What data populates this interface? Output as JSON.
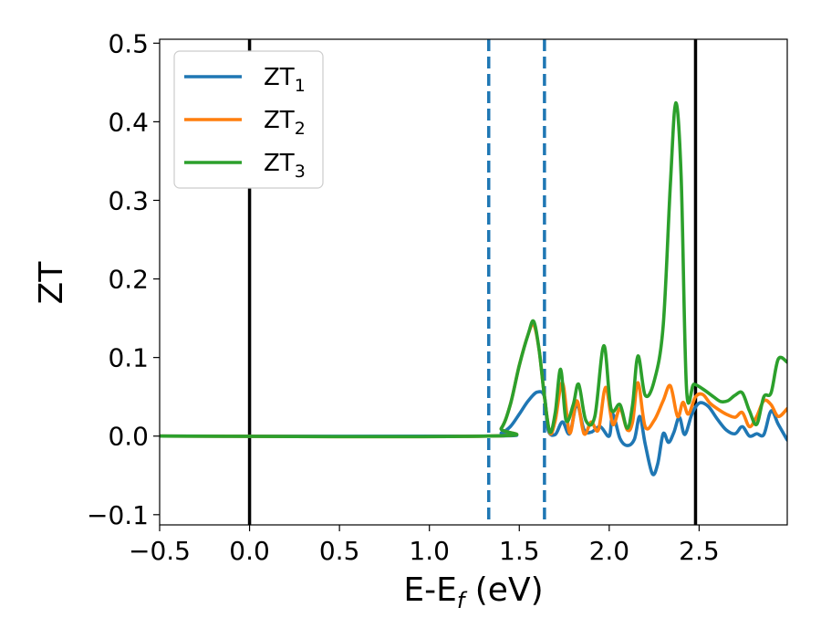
{
  "chart_data": {
    "type": "line",
    "xlabel": "E-E",
    "xlabel_sub": "f",
    "xlabel_unit": " (eV)",
    "ylabel": "ZT",
    "xlim": [
      -0.5,
      2.99
    ],
    "ylim": [
      -0.113,
      0.505
    ],
    "xticks": [
      -0.5,
      0.0,
      0.5,
      1.0,
      1.5,
      2.0,
      2.5
    ],
    "xtick_labels": [
      "−0.5",
      "0.0",
      "0.5",
      "1.0",
      "1.5",
      "2.0",
      "2.5"
    ],
    "yticks": [
      -0.1,
      0.0,
      0.1,
      0.2,
      0.3,
      0.4,
      0.5
    ],
    "ytick_labels": [
      "−0.1",
      "0.0",
      "0.1",
      "0.2",
      "0.3",
      "0.4",
      "0.5"
    ],
    "legend_position": "top-left",
    "grid": false,
    "vlines": [
      {
        "x": 0.0,
        "style": "solid",
        "color": "#000000"
      },
      {
        "x": 2.48,
        "style": "solid",
        "color": "#000000"
      },
      {
        "x": 1.33,
        "style": "dashed",
        "color": "#1f77b4"
      },
      {
        "x": 1.64,
        "style": "dashed",
        "color": "#1f77b4"
      }
    ],
    "series": [
      {
        "name": "ZT",
        "name_sub": "1",
        "color": "#1f77b4",
        "points": [
          [
            -0.5,
            0
          ],
          [
            1.33,
            0
          ],
          [
            1.4,
            0.004
          ],
          [
            1.45,
            0.012
          ],
          [
            1.5,
            0.028
          ],
          [
            1.55,
            0.045
          ],
          [
            1.6,
            0.056
          ],
          [
            1.64,
            0.05
          ],
          [
            1.66,
            0.008
          ],
          [
            1.7,
            0.002
          ],
          [
            1.74,
            0.018
          ],
          [
            1.78,
            0.003
          ],
          [
            1.82,
            0.04
          ],
          [
            1.86,
            0.008
          ],
          [
            1.9,
            0.005
          ],
          [
            1.95,
            0.012
          ],
          [
            2.0,
            0.0
          ],
          [
            2.02,
            0.028
          ],
          [
            2.06,
            -0.003
          ],
          [
            2.1,
            -0.012
          ],
          [
            2.14,
            -0.004
          ],
          [
            2.17,
            0.025
          ],
          [
            2.2,
            -0.01
          ],
          [
            2.24,
            -0.048
          ],
          [
            2.27,
            -0.035
          ],
          [
            2.3,
            0.003
          ],
          [
            2.33,
            -0.008
          ],
          [
            2.36,
            0.005
          ],
          [
            2.39,
            0.024
          ],
          [
            2.42,
            0.002
          ],
          [
            2.46,
            0.028
          ],
          [
            2.5,
            0.042
          ],
          [
            2.55,
            0.038
          ],
          [
            2.6,
            0.022
          ],
          [
            2.65,
            0.008
          ],
          [
            2.7,
            0.003
          ],
          [
            2.74,
            0.012
          ],
          [
            2.78,
            0.0
          ],
          [
            2.82,
            0.003
          ],
          [
            2.86,
            0.002
          ],
          [
            2.9,
            0.032
          ],
          [
            2.94,
            0.015
          ],
          [
            2.99,
            -0.005
          ]
        ]
      },
      {
        "name": "ZT",
        "name_sub": "2",
        "color": "#ff7f0e",
        "points": [
          [
            -0.5,
            0
          ],
          [
            1.33,
            0
          ],
          [
            1.4,
            0.01
          ],
          [
            1.45,
            0.04
          ],
          [
            1.5,
            0.09
          ],
          [
            1.55,
            0.13
          ],
          [
            1.58,
            0.142
          ],
          [
            1.61,
            0.11
          ],
          [
            1.64,
            0.05
          ],
          [
            1.67,
            0.004
          ],
          [
            1.7,
            0.02
          ],
          [
            1.74,
            0.068
          ],
          [
            1.78,
            0.004
          ],
          [
            1.82,
            0.045
          ],
          [
            1.86,
            0.003
          ],
          [
            1.9,
            0.018
          ],
          [
            1.94,
            0.008
          ],
          [
            1.98,
            0.062
          ],
          [
            2.02,
            0.015
          ],
          [
            2.06,
            0.035
          ],
          [
            2.1,
            0.008
          ],
          [
            2.13,
            0.018
          ],
          [
            2.16,
            0.068
          ],
          [
            2.2,
            0.012
          ],
          [
            2.25,
            0.02
          ],
          [
            2.3,
            0.045
          ],
          [
            2.34,
            0.064
          ],
          [
            2.38,
            0.025
          ],
          [
            2.41,
            0.043
          ],
          [
            2.44,
            0.028
          ],
          [
            2.48,
            0.05
          ],
          [
            2.52,
            0.053
          ],
          [
            2.56,
            0.042
          ],
          [
            2.6,
            0.035
          ],
          [
            2.65,
            0.028
          ],
          [
            2.7,
            0.024
          ],
          [
            2.74,
            0.03
          ],
          [
            2.78,
            0.012
          ],
          [
            2.82,
            0.025
          ],
          [
            2.86,
            0.045
          ],
          [
            2.9,
            0.04
          ],
          [
            2.94,
            0.025
          ],
          [
            2.99,
            0.035
          ]
        ]
      },
      {
        "name": "ZT",
        "name_sub": "3",
        "color": "#2ca02c",
        "points": [
          [
            -0.5,
            0
          ],
          [
            1.33,
            0
          ],
          [
            1.4,
            0.01
          ],
          [
            1.45,
            0.04
          ],
          [
            1.5,
            0.09
          ],
          [
            1.55,
            0.13
          ],
          [
            1.58,
            0.146
          ],
          [
            1.61,
            0.11
          ],
          [
            1.64,
            0.05
          ],
          [
            1.67,
            0.005
          ],
          [
            1.7,
            0.03
          ],
          [
            1.73,
            0.085
          ],
          [
            1.76,
            0.02
          ],
          [
            1.8,
            0.04
          ],
          [
            1.83,
            0.066
          ],
          [
            1.87,
            0.02
          ],
          [
            1.92,
            0.025
          ],
          [
            1.97,
            0.115
          ],
          [
            2.01,
            0.035
          ],
          [
            2.06,
            0.04
          ],
          [
            2.1,
            0.01
          ],
          [
            2.13,
            0.04
          ],
          [
            2.16,
            0.102
          ],
          [
            2.2,
            0.052
          ],
          [
            2.25,
            0.07
          ],
          [
            2.3,
            0.14
          ],
          [
            2.34,
            0.32
          ],
          [
            2.37,
            0.424
          ],
          [
            2.4,
            0.33
          ],
          [
            2.43,
            0.06
          ],
          [
            2.47,
            0.066
          ],
          [
            2.52,
            0.06
          ],
          [
            2.58,
            0.05
          ],
          [
            2.62,
            0.044
          ],
          [
            2.66,
            0.045
          ],
          [
            2.7,
            0.052
          ],
          [
            2.74,
            0.055
          ],
          [
            2.78,
            0.032
          ],
          [
            2.82,
            0.015
          ],
          [
            2.86,
            0.05
          ],
          [
            2.9,
            0.055
          ],
          [
            2.94,
            0.098
          ],
          [
            2.99,
            0.094
          ]
        ]
      }
    ]
  }
}
